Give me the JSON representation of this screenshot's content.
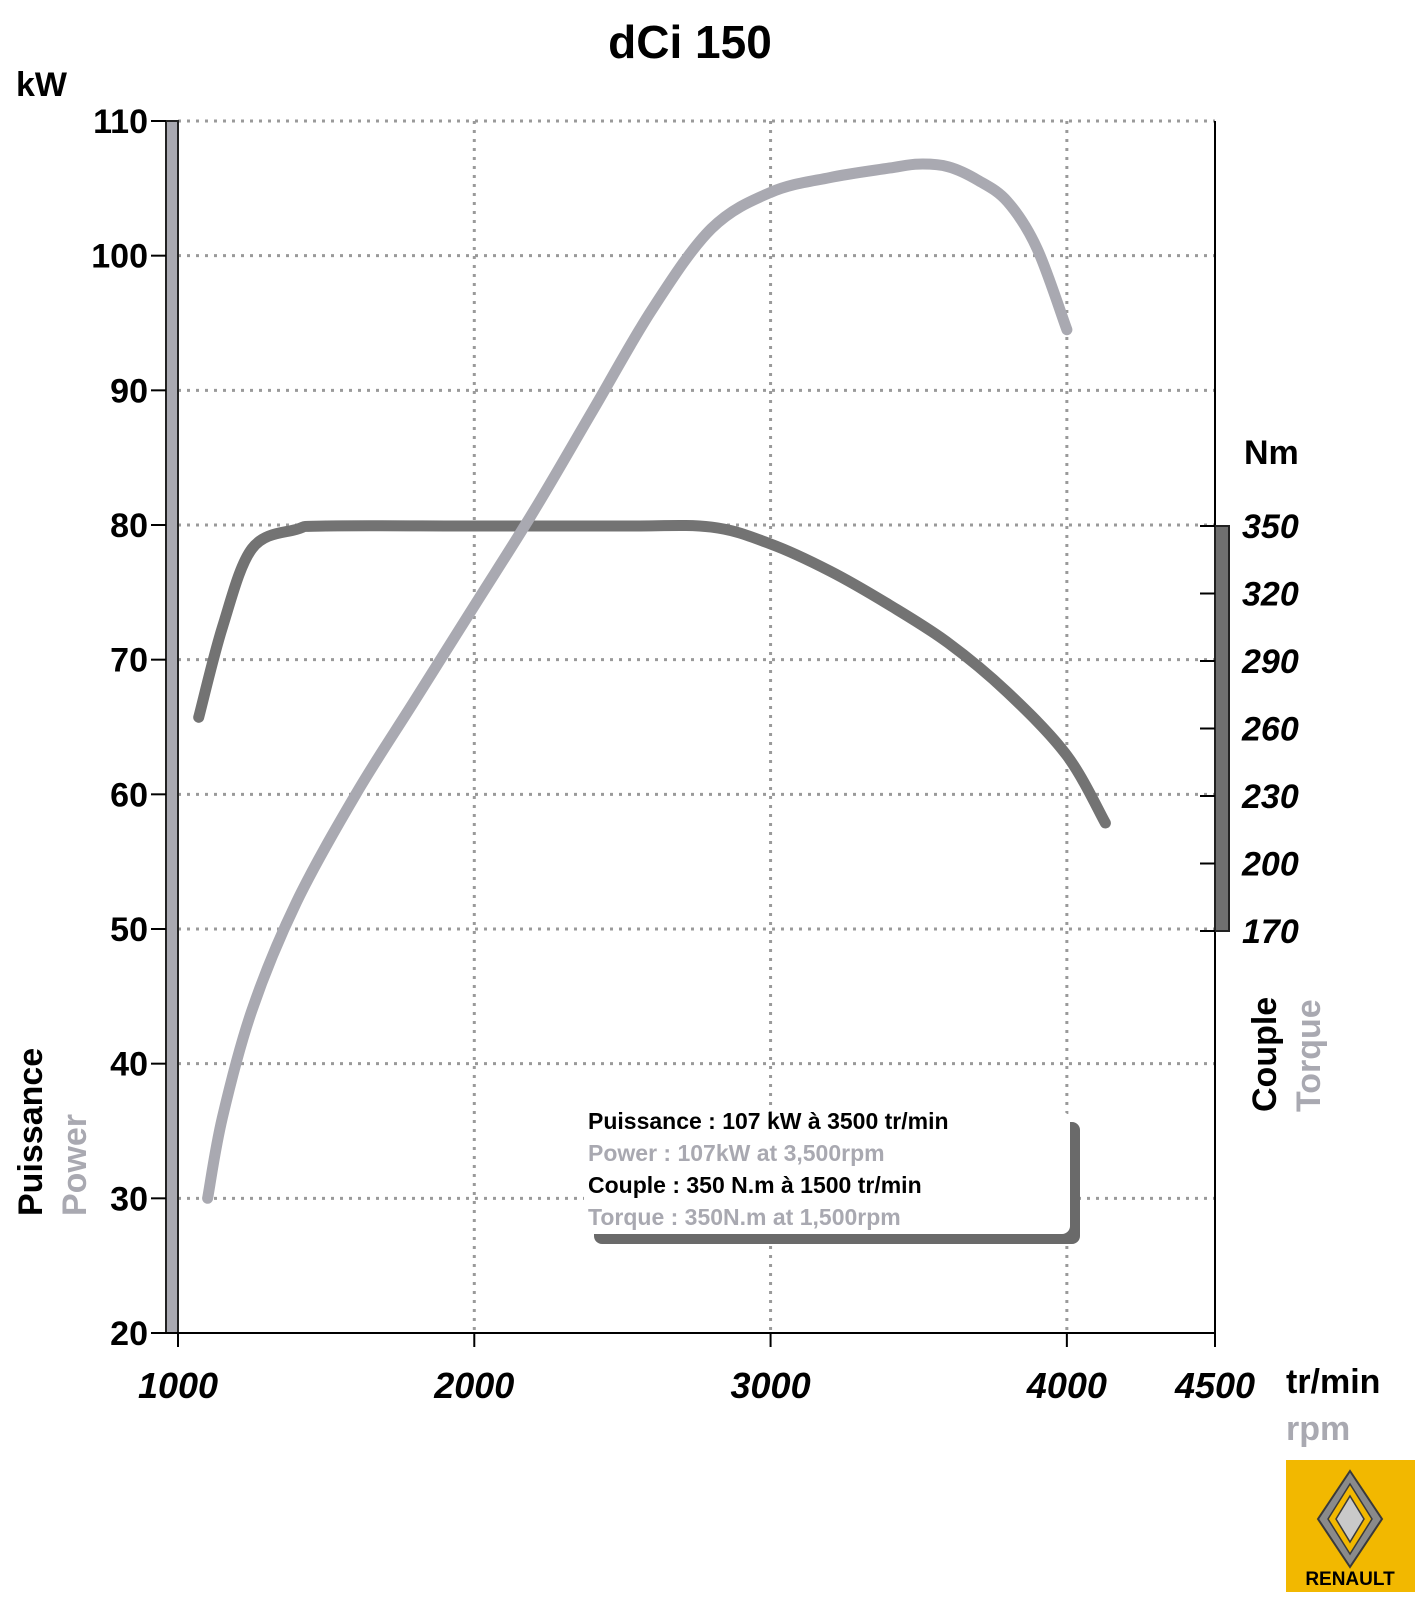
{
  "chart_data": {
    "type": "line",
    "title": "dCi 150",
    "colors": {
      "power": "#a9a9b1",
      "torque": "#737373",
      "grid": "#9a9a9a",
      "logo_bg": "#f2b800"
    },
    "x_axis": {
      "range": [
        1000,
        4500
      ],
      "ticks": [
        "1000",
        "2000",
        "3000",
        "4000",
        "4500"
      ],
      "tick_values": [
        1000,
        2000,
        3000,
        4000,
        4500
      ],
      "unit": "tr/min",
      "unit_alt": "rpm"
    },
    "y_left": {
      "range": [
        20,
        110
      ],
      "ticks": [
        "20",
        "30",
        "40",
        "50",
        "60",
        "70",
        "80",
        "90",
        "100",
        "110"
      ],
      "tick_values": [
        20,
        30,
        40,
        50,
        60,
        70,
        80,
        90,
        100,
        110
      ],
      "unit": "kW",
      "label": "Puissance",
      "label_alt": "Power"
    },
    "y_right": {
      "range": [
        170,
        350
      ],
      "ticks": [
        "350",
        "320",
        "290",
        "260",
        "230",
        "200",
        "170"
      ],
      "tick_values": [
        350,
        320,
        290,
        260,
        230,
        200,
        170
      ],
      "unit": "Nm",
      "label": "Couple",
      "label_alt": "Torque"
    },
    "grid": true,
    "series": [
      {
        "name": "Power",
        "axis": "left",
        "points": [
          [
            1100,
            30
          ],
          [
            1150,
            36
          ],
          [
            1250,
            44
          ],
          [
            1400,
            52
          ],
          [
            1600,
            60
          ],
          [
            1800,
            67
          ],
          [
            2000,
            74
          ],
          [
            2200,
            81
          ],
          [
            2400,
            88.5
          ],
          [
            2600,
            96
          ],
          [
            2800,
            102
          ],
          [
            3000,
            104.7
          ],
          [
            3200,
            105.8
          ],
          [
            3400,
            106.5
          ],
          [
            3500,
            106.8
          ],
          [
            3600,
            106.6
          ],
          [
            3700,
            105.6
          ],
          [
            3800,
            104
          ],
          [
            3900,
            100.5
          ],
          [
            4000,
            94.5
          ]
        ]
      },
      {
        "name": "Couple",
        "axis": "right",
        "points": [
          [
            1070,
            265
          ],
          [
            1150,
            305
          ],
          [
            1250,
            340
          ],
          [
            1400,
            348.5
          ],
          [
            1500,
            350
          ],
          [
            2000,
            350
          ],
          [
            2500,
            350
          ],
          [
            2800,
            349.5
          ],
          [
            3000,
            342
          ],
          [
            3200,
            330
          ],
          [
            3400,
            315
          ],
          [
            3600,
            298
          ],
          [
            3800,
            276
          ],
          [
            4000,
            248
          ],
          [
            4130,
            218
          ]
        ]
      }
    ],
    "info_box": {
      "line1": "Puissance : 107 kW à 3500 tr/min",
      "line2": "Power : 107kW at 3,500rpm",
      "line3": "Couple : 350 N.m à 1500 tr/min",
      "line4": "Torque : 350N.m at 1,500rpm"
    }
  },
  "logo": {
    "text": "RENAULT"
  }
}
